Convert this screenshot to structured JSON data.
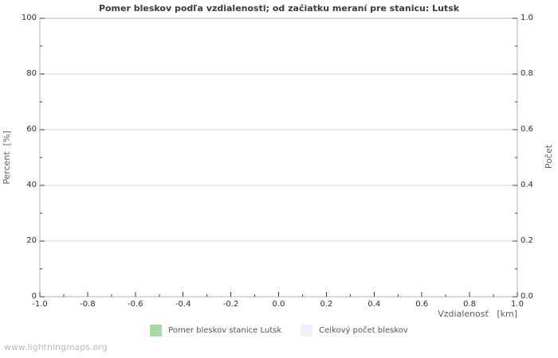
{
  "page": {
    "watermark": "www.lightningmaps.org"
  },
  "chart_data": {
    "type": "bar",
    "title": "Pomer bleskov podľa vzdialenosti; od začiatku meraní pre stanicu: Lutsk",
    "x_axis": {
      "label": "Vzdialenosť   [km]",
      "range": [
        -1.0,
        1.0
      ],
      "ticks": [
        "-1.0",
        "-0.8",
        "-0.6",
        "-0.4",
        "-0.2",
        "0.0",
        "0.2",
        "0.4",
        "0.6",
        "0.8",
        "1.0"
      ],
      "minor_tick_step": 0.1
    },
    "y_left": {
      "label": "Percent  [%]",
      "range": [
        0,
        100
      ],
      "ticks": [
        "0",
        "20",
        "40",
        "60",
        "80",
        "100"
      ],
      "minor_tick_step": 10
    },
    "y_right": {
      "label": "Počet",
      "range": [
        0.0,
        1.0
      ],
      "ticks": [
        "0.0",
        "0.2",
        "0.4",
        "0.6",
        "0.8",
        "1.0"
      ],
      "minor_tick_step": 0.1
    },
    "grid": "horizontal-major-only",
    "legend_position": "bottom-center",
    "series": [
      {
        "name": "Pomer bleskov stanice Lutsk",
        "color": "#a8daa8",
        "values": []
      },
      {
        "name": "Celkový počet bleskov",
        "color": "#eef0fb",
        "values": []
      }
    ],
    "colors": {
      "plot_border": "#b3b3b3",
      "gridline": "#d6d6d6",
      "tick_mark": "#3c3c3c"
    }
  }
}
